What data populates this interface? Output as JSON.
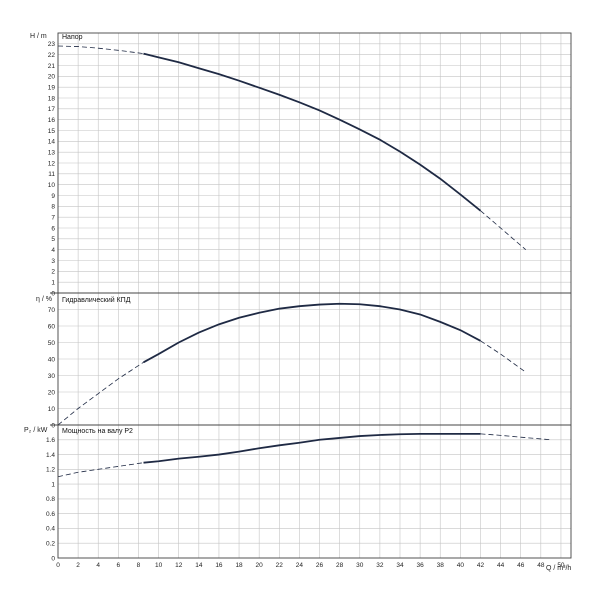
{
  "chart_data": [
    {
      "type": "line",
      "title": "Напор",
      "ylabel": "H / m",
      "ylim": [
        0,
        24
      ],
      "y_ticks": [
        0,
        1,
        2,
        3,
        4,
        5,
        6,
        7,
        8,
        9,
        10,
        11,
        12,
        13,
        14,
        15,
        16,
        17,
        18,
        19,
        20,
        21,
        22,
        23
      ],
      "grid": true,
      "series": [
        {
          "x": [
            0,
            2,
            4,
            6,
            8.5,
            10,
            12,
            14,
            16,
            18,
            20,
            22,
            24,
            26,
            28,
            30,
            32,
            34,
            36,
            38,
            40,
            42,
            44,
            46.5
          ],
          "values": [
            22.8,
            22.75,
            22.6,
            22.4,
            22.1,
            21.75,
            21.3,
            20.75,
            20.2,
            19.6,
            18.95,
            18.3,
            17.6,
            16.85,
            16.0,
            15.1,
            14.15,
            13.05,
            11.85,
            10.55,
            9.1,
            7.6,
            6.0,
            4.0
          ],
          "solid_range": [
            8.5,
            42
          ]
        }
      ]
    },
    {
      "type": "line",
      "title": "Гидравлический КПД",
      "ylabel": "η / %",
      "ylim": [
        0,
        80
      ],
      "y_ticks": [
        0,
        10,
        20,
        30,
        40,
        50,
        60,
        70
      ],
      "grid": true,
      "series": [
        {
          "x": [
            0,
            2,
            4,
            6,
            8.5,
            10,
            12,
            14,
            16,
            18,
            20,
            22,
            24,
            26,
            28,
            30,
            32,
            34,
            36,
            38,
            40,
            42,
            44,
            46.5
          ],
          "values": [
            0,
            10,
            19,
            28,
            38,
            43,
            50,
            56,
            61,
            65,
            68,
            70.5,
            72,
            73,
            73.5,
            73.2,
            72,
            70,
            67,
            62.5,
            57.5,
            51,
            43,
            32
          ],
          "solid_range": [
            8.5,
            42
          ]
        }
      ]
    },
    {
      "type": "line",
      "title": "Мощность на валу P2",
      "ylabel": "P₂ / kW",
      "ylim": [
        0,
        1.8
      ],
      "y_ticks": [
        0,
        0.2,
        0.4,
        0.6,
        0.8,
        1,
        1.2,
        1.4,
        1.6
      ],
      "xlabel": "Q / m³/h",
      "xlim": [
        0,
        51
      ],
      "x_ticks": [
        0,
        2,
        4,
        6,
        8,
        10,
        12,
        14,
        16,
        18,
        20,
        22,
        24,
        26,
        28,
        30,
        32,
        34,
        36,
        38,
        40,
        42,
        44,
        46,
        48,
        50
      ],
      "grid": true,
      "series": [
        {
          "x": [
            0,
            2,
            4,
            6,
            8.5,
            10,
            12,
            14,
            16,
            18,
            20,
            22,
            24,
            26,
            28,
            30,
            32,
            34,
            36,
            38,
            40,
            42,
            44,
            46,
            49
          ],
          "values": [
            1.1,
            1.16,
            1.2,
            1.24,
            1.29,
            1.31,
            1.345,
            1.37,
            1.4,
            1.44,
            1.485,
            1.525,
            1.56,
            1.6,
            1.625,
            1.65,
            1.665,
            1.675,
            1.68,
            1.68,
            1.68,
            1.68,
            1.66,
            1.635,
            1.6
          ],
          "solid_range": [
            8.5,
            42
          ]
        }
      ]
    }
  ]
}
